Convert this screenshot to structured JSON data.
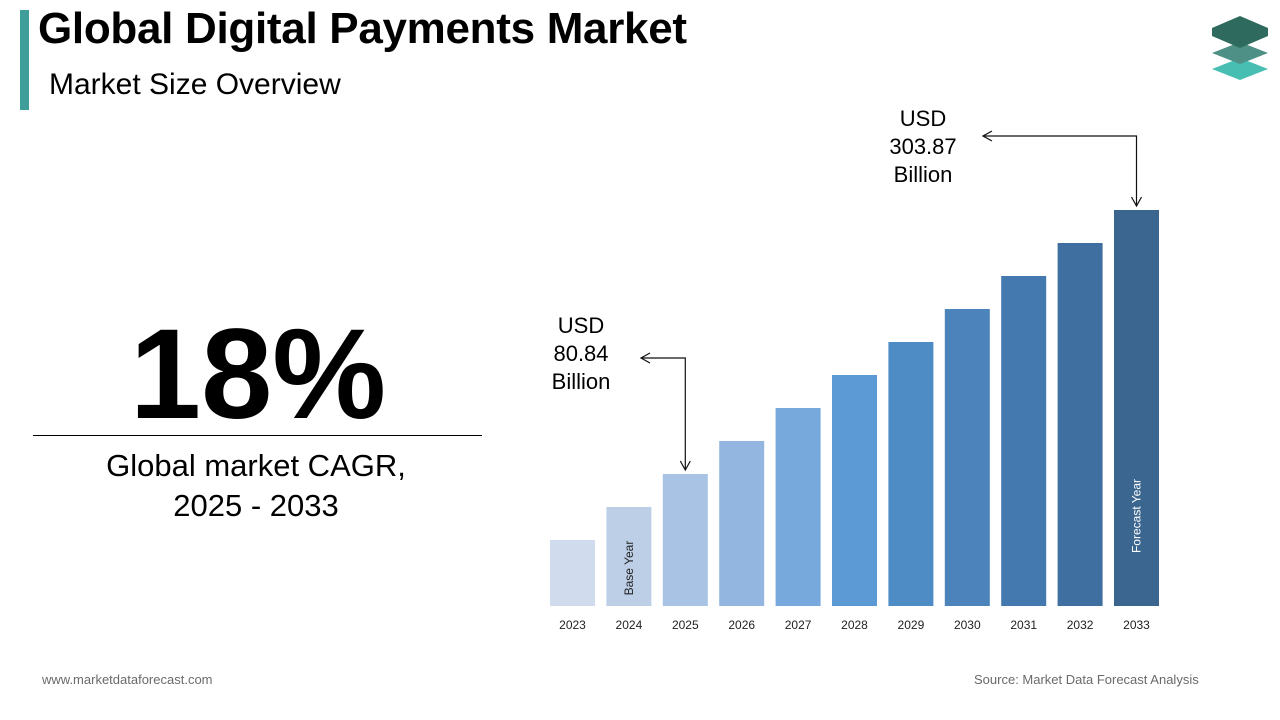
{
  "header": {
    "title": "Global Digital Payments Market",
    "subtitle": "Market Size Overview"
  },
  "logo": {
    "icon": "stacked-layers-logo-icon",
    "colors": [
      "#2f6a5f",
      "#4e8f86",
      "#48bdb2"
    ]
  },
  "stat": {
    "value": "18%",
    "caption_line1": "Global market CAGR,",
    "caption_line2": "2025 - 2033"
  },
  "annotations": {
    "start": {
      "line1": "USD",
      "line2": "80.84",
      "line3": "Billion"
    },
    "end": {
      "line1": "USD",
      "line2": "303.87",
      "line3": "Billion"
    }
  },
  "footer": {
    "website": "www.marketdataforecast.com",
    "source": "Source: Market Data Forecast Analysis"
  },
  "chart_data": {
    "type": "bar",
    "categories": [
      "2023",
      "2024",
      "2025",
      "2026",
      "2027",
      "2028",
      "2029",
      "2030",
      "2031",
      "2032",
      "2033"
    ],
    "values": [
      20,
      30,
      40,
      50,
      60,
      70,
      80,
      90,
      100,
      110,
      120
    ],
    "value_labels": {
      "2025": "USD 80.84 Billion",
      "2033": "USD 303.87 Billion"
    },
    "bar_labels": {
      "2024": "Base Year",
      "2033": "Forecast Year"
    },
    "colors": [
      "#d0dcee",
      "#bccfe7",
      "#a8c3e4",
      "#92b6df",
      "#78a9dd",
      "#5b9ad4",
      "#4e8cc6",
      "#4b83ba",
      "#4479b0",
      "#3e6fa0",
      "#3b6690"
    ],
    "ylim": [
      0,
      120
    ],
    "grid": false,
    "legend": "none"
  }
}
